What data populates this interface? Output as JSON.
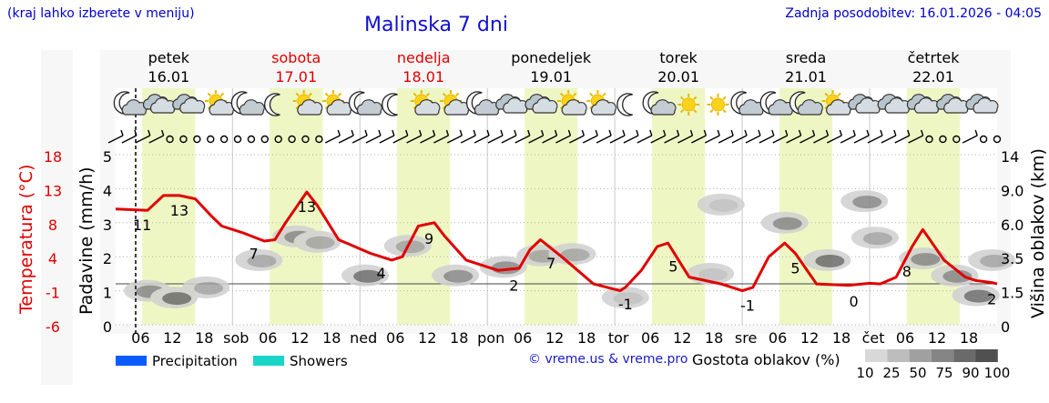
{
  "header": {
    "hint": "(kraj lahko izberete v meniju)",
    "title": "Malinska 7 dni",
    "updated": "Zadnja posodobitev: 16.01.2026 - 04:05"
  },
  "colors": {
    "temperature": "#e00000",
    "weekend": "#e00000",
    "daytime_band": "#eef7c4",
    "precipitation": "#0a5cff",
    "showers": "#19d6c8",
    "link": "#1a1acc"
  },
  "days": [
    {
      "name": "petek",
      "date": "16.01",
      "weekend": false
    },
    {
      "name": "sobota",
      "date": "17.01",
      "weekend": true
    },
    {
      "name": "nedelja",
      "date": "18.01",
      "weekend": true
    },
    {
      "name": "ponedeljek",
      "date": "19.01",
      "weekend": false
    },
    {
      "name": "torek",
      "date": "20.01",
      "weekend": false
    },
    {
      "name": "sreda",
      "date": "21.01",
      "weekend": false
    },
    {
      "name": "četrtek",
      "date": "22.01",
      "weekend": false
    }
  ],
  "icons": [
    "moon-cloud",
    "cloud",
    "cloud",
    "sun-cloud",
    "moon-cloud",
    "moon",
    "sun-cloud",
    "sun-cloud",
    "moon-cloud",
    "moon",
    "sun-cloud",
    "sun-cloud",
    "moon-cloud",
    "cloud",
    "cloud",
    "sun-cloud",
    "sun-cloud",
    "moon",
    "moon-cloud",
    "sun",
    "sun",
    "moon-cloud",
    "moon-cloud",
    "moon-cloud",
    "sun-cloud",
    "cloud",
    "cloud",
    "cloud",
    "cloud",
    "cloud"
  ],
  "wind_symbols": [
    "barb",
    "barb",
    "barb",
    "barb",
    "calm",
    "calm",
    "calm",
    "calm",
    "calm",
    "calm",
    "calm",
    "calm",
    "calm",
    "calm",
    "calm",
    "calm",
    "barb",
    "barb",
    "barb",
    "barb",
    "barb",
    "barb",
    "barb",
    "barb",
    "barb",
    "barb",
    "barb",
    "barb",
    "barb",
    "barb",
    "barb",
    "barb",
    "barb",
    "barb",
    "barb",
    "barb",
    "barb",
    "barb",
    "barb",
    "barb",
    "barb",
    "barb",
    "barb",
    "barb",
    "barb",
    "barb",
    "barb",
    "barb",
    "barb",
    "barb",
    "barb",
    "barb",
    "barb",
    "barb",
    "barb",
    "barb",
    "barb",
    "barb",
    "barb",
    "barb",
    "calm",
    "calm",
    "calm",
    "barb",
    "calm",
    "calm"
  ],
  "chart_data": {
    "type": "line",
    "title": "Malinska 7 dni",
    "x_tick_labels": [
      "06",
      "12",
      "18",
      "sob",
      "06",
      "12",
      "18",
      "ned",
      "06",
      "12",
      "18",
      "pon",
      "06",
      "12",
      "18",
      "tor",
      "06",
      "12",
      "18",
      "sre",
      "06",
      "12",
      "18",
      "čet",
      "06",
      "12",
      "18"
    ],
    "series": [
      {
        "name": "Temperatura (°C)",
        "hours": [
          0,
          6,
          9,
          12,
          15,
          18,
          20,
          24,
          28,
          30,
          32,
          36,
          38,
          42,
          48,
          52,
          54,
          57,
          60,
          62,
          66,
          72,
          76,
          78,
          80,
          84,
          90,
          95,
          96,
          99,
          102,
          104,
          108,
          114,
          118,
          120,
          123,
          126,
          128,
          132,
          138,
          142,
          144,
          147,
          150,
          152,
          156,
          160,
          162,
          165,
          166
        ],
        "values": [
          11,
          10.8,
          13,
          13,
          12.5,
          10,
          8.5,
          7.5,
          6.3,
          6.5,
          9,
          13.5,
          11.5,
          6.5,
          4.5,
          3.5,
          4,
          8.5,
          9,
          7,
          3.5,
          2,
          2.3,
          5,
          6.5,
          4,
          0,
          -1,
          -0.5,
          2,
          5.5,
          6,
          1,
          0,
          -1,
          -0.5,
          4,
          6,
          4.5,
          0,
          -0.2,
          0.1,
          0,
          1,
          5.5,
          8,
          3.5,
          1,
          0.5,
          0.2,
          0
        ]
      }
    ],
    "labeled_points": [
      {
        "value": "11",
        "hour": 5
      },
      {
        "value": "13",
        "hour": 12
      },
      {
        "value": "7",
        "hour": 26
      },
      {
        "value": "13",
        "hour": 36
      },
      {
        "value": "4",
        "hour": 50
      },
      {
        "value": "9",
        "hour": 59
      },
      {
        "value": "2",
        "hour": 75
      },
      {
        "value": "7",
        "hour": 82
      },
      {
        "value": "-1",
        "hour": 96
      },
      {
        "value": "5",
        "hour": 105
      },
      {
        "value": "-1",
        "hour": 119
      },
      {
        "value": "5",
        "hour": 128
      },
      {
        "value": "0",
        "hour": 139
      },
      {
        "value": "8",
        "hour": 149
      },
      {
        "value": "2",
        "hour": 165
      }
    ],
    "temperature_axis": {
      "label": "Temperatura (°C)",
      "ticks": [
        "18",
        "13",
        "8",
        "4",
        "-1",
        "-6"
      ],
      "range": [
        -6,
        19
      ]
    },
    "precipitation_axis": {
      "label": "Padavine (mm/h)",
      "ticks": [
        "5",
        "4",
        "3",
        "2",
        "1",
        "0"
      ],
      "range": [
        0,
        5
      ]
    },
    "cloud_axis": {
      "label": "Višina oblakov (km)",
      "ticks": [
        "14",
        "9.0",
        "6.0",
        "3.5",
        "1.5",
        "0"
      ]
    },
    "cloud_legend": {
      "title": "Gostota oblakov (%)",
      "ticks": [
        "10",
        "25",
        "50",
        "75",
        "90",
        "100"
      ],
      "shades": [
        "#d8d8d8",
        "#bdbdbd",
        "#a0a0a0",
        "#858585",
        "#6a6a6a",
        "#505050"
      ]
    },
    "series_legend": [
      {
        "name": "Precipitation",
        "color": "#0a5cff"
      },
      {
        "name": "Showers",
        "color": "#19d6c8"
      }
    ],
    "cloud_blobs": [
      {
        "hour": 6,
        "km": 1.5,
        "density": 75
      },
      {
        "hour": 11,
        "km": 1.2,
        "density": 90
      },
      {
        "hour": 17,
        "km": 1.7,
        "density": 50
      },
      {
        "hour": 27,
        "km": 3.3,
        "density": 50
      },
      {
        "hour": 34,
        "km": 5.0,
        "density": 75
      },
      {
        "hour": 38,
        "km": 4.6,
        "density": 50
      },
      {
        "hour": 47,
        "km": 2.4,
        "density": 90
      },
      {
        "hour": 55,
        "km": 4.3,
        "density": 50
      },
      {
        "hour": 64,
        "km": 2.4,
        "density": 75
      },
      {
        "hour": 73,
        "km": 2.9,
        "density": 75
      },
      {
        "hour": 80,
        "km": 3.6,
        "density": 50
      },
      {
        "hour": 86,
        "km": 3.7,
        "density": 50
      },
      {
        "hour": 96,
        "km": 1.2,
        "density": 25
      },
      {
        "hour": 112,
        "km": 2.5,
        "density": 25
      },
      {
        "hour": 114,
        "km": 7.6,
        "density": 25
      },
      {
        "hour": 126,
        "km": 6.0,
        "density": 75
      },
      {
        "hour": 134,
        "km": 3.3,
        "density": 90
      },
      {
        "hour": 141,
        "km": 7.9,
        "density": 75
      },
      {
        "hour": 143,
        "km": 4.9,
        "density": 50
      },
      {
        "hour": 152,
        "km": 3.4,
        "density": 75
      },
      {
        "hour": 158,
        "km": 2.4,
        "density": 75
      },
      {
        "hour": 162,
        "km": 1.3,
        "density": 90
      },
      {
        "hour": 165,
        "km": 3.3,
        "density": 50
      }
    ]
  },
  "credit": "© vreme.us & vreme.pro"
}
